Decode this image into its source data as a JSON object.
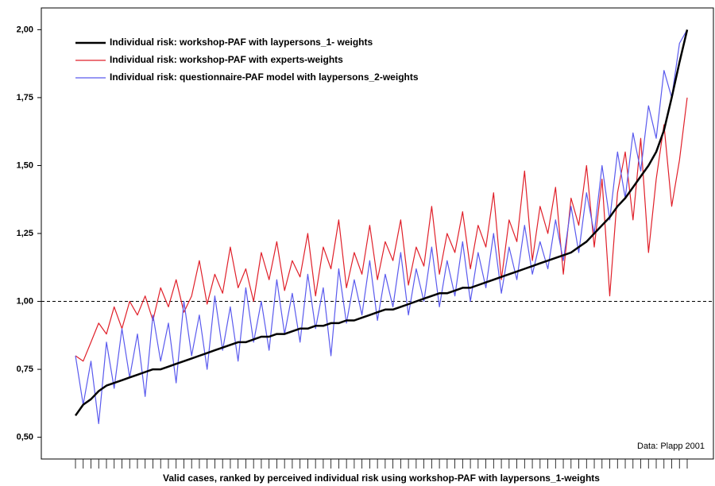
{
  "chart_data": {
    "type": "line",
    "x_label": "Valid cases, ranked by perceived individual risk using workshop-PAF with laypersons_1-weights",
    "annotation": "Data: Plapp 2001",
    "categories": [
      null,
      null,
      null,
      null,
      null,
      null,
      null,
      null,
      null,
      null,
      null,
      null,
      null,
      null,
      null,
      null,
      null,
      null,
      null,
      null,
      null,
      null,
      null,
      null,
      null,
      null,
      null,
      null,
      null,
      null,
      null,
      null,
      null,
      null,
      null,
      null,
      null,
      null,
      null,
      null,
      null,
      null,
      null,
      null,
      null,
      null,
      null,
      null,
      null,
      null,
      null,
      null,
      null,
      null,
      null,
      null,
      null,
      null,
      null,
      null,
      null,
      null,
      null,
      null,
      null,
      null,
      null,
      null,
      null,
      null,
      null,
      null,
      null,
      null,
      null,
      null,
      null,
      null,
      null,
      null
    ],
    "ylim": [
      0.42,
      2.08
    ],
    "yticks": [
      {
        "value": 0.5,
        "label": "0,50"
      },
      {
        "value": 0.75,
        "label": "0,75"
      },
      {
        "value": 1,
        "label": "1,00"
      },
      {
        "value": 1.25,
        "label": "1,25"
      },
      {
        "value": 1.5,
        "label": "1,50"
      },
      {
        "value": 1.75,
        "label": "1,75"
      },
      {
        "value": 2,
        "label": "2,00"
      }
    ],
    "reference_line": 1,
    "legend_position": "upper-left",
    "series": [
      {
        "name": "Individual risk: workshop-PAF with laypersons_1- weights",
        "color": "#000000",
        "width": 2.5,
        "values": [
          0.58,
          0.62,
          0.64,
          0.67,
          0.69,
          0.7,
          0.71,
          0.72,
          0.73,
          0.74,
          0.75,
          0.75,
          0.76,
          0.77,
          0.78,
          0.79,
          0.8,
          0.81,
          0.82,
          0.83,
          0.84,
          0.85,
          0.85,
          0.86,
          0.87,
          0.87,
          0.88,
          0.88,
          0.89,
          0.9,
          0.9,
          0.91,
          0.91,
          0.92,
          0.92,
          0.93,
          0.93,
          0.94,
          0.95,
          0.96,
          0.97,
          0.97,
          0.98,
          0.99,
          1.0,
          1.01,
          1.02,
          1.03,
          1.03,
          1.04,
          1.05,
          1.05,
          1.06,
          1.07,
          1.08,
          1.09,
          1.1,
          1.11,
          1.12,
          1.13,
          1.14,
          1.15,
          1.16,
          1.17,
          1.18,
          1.2,
          1.22,
          1.25,
          1.28,
          1.31,
          1.35,
          1.38,
          1.42,
          1.46,
          1.5,
          1.55,
          1.63,
          1.75,
          1.88,
          2.0
        ]
      },
      {
        "name": "Individual risk: workshop-PAF with experts-weights",
        "color": "#e0202a",
        "width": 1.2,
        "values": [
          0.8,
          0.78,
          0.85,
          0.92,
          0.88,
          0.98,
          0.9,
          1.0,
          0.95,
          1.02,
          0.93,
          1.05,
          0.98,
          1.08,
          0.96,
          1.02,
          1.15,
          0.99,
          1.1,
          1.03,
          1.2,
          1.05,
          1.12,
          1.0,
          1.18,
          1.08,
          1.22,
          1.04,
          1.15,
          1.09,
          1.25,
          1.02,
          1.2,
          1.12,
          1.3,
          1.05,
          1.18,
          1.1,
          1.28,
          1.08,
          1.22,
          1.15,
          1.3,
          1.06,
          1.2,
          1.13,
          1.35,
          1.1,
          1.25,
          1.18,
          1.33,
          1.12,
          1.28,
          1.2,
          1.4,
          1.08,
          1.3,
          1.22,
          1.48,
          1.15,
          1.35,
          1.25,
          1.42,
          1.1,
          1.38,
          1.28,
          1.5,
          1.2,
          1.45,
          1.02,
          1.4,
          1.55,
          1.3,
          1.6,
          1.18,
          1.45,
          1.65,
          1.35,
          1.52,
          1.75
        ]
      },
      {
        "name": "Individual risk: questionnaire-PAF model with laypersons_2-weights",
        "color": "#5a5aee",
        "width": 1.2,
        "values": [
          0.8,
          0.62,
          0.78,
          0.55,
          0.85,
          0.68,
          0.9,
          0.72,
          0.88,
          0.65,
          0.95,
          0.78,
          0.92,
          0.7,
          1.0,
          0.8,
          0.95,
          0.75,
          1.02,
          0.82,
          0.98,
          0.78,
          1.05,
          0.85,
          1.0,
          0.82,
          1.08,
          0.88,
          1.03,
          0.85,
          1.1,
          0.9,
          1.05,
          0.8,
          1.12,
          0.92,
          1.08,
          0.95,
          1.15,
          0.93,
          1.1,
          0.98,
          1.18,
          0.95,
          1.12,
          1.0,
          1.2,
          0.98,
          1.15,
          1.02,
          1.22,
          1.0,
          1.18,
          1.05,
          1.25,
          1.03,
          1.2,
          1.08,
          1.28,
          1.1,
          1.22,
          1.12,
          1.3,
          1.15,
          1.35,
          1.18,
          1.4,
          1.25,
          1.5,
          1.3,
          1.55,
          1.38,
          1.62,
          1.48,
          1.72,
          1.6,
          1.85,
          1.75,
          1.95,
          2.0
        ]
      }
    ]
  }
}
